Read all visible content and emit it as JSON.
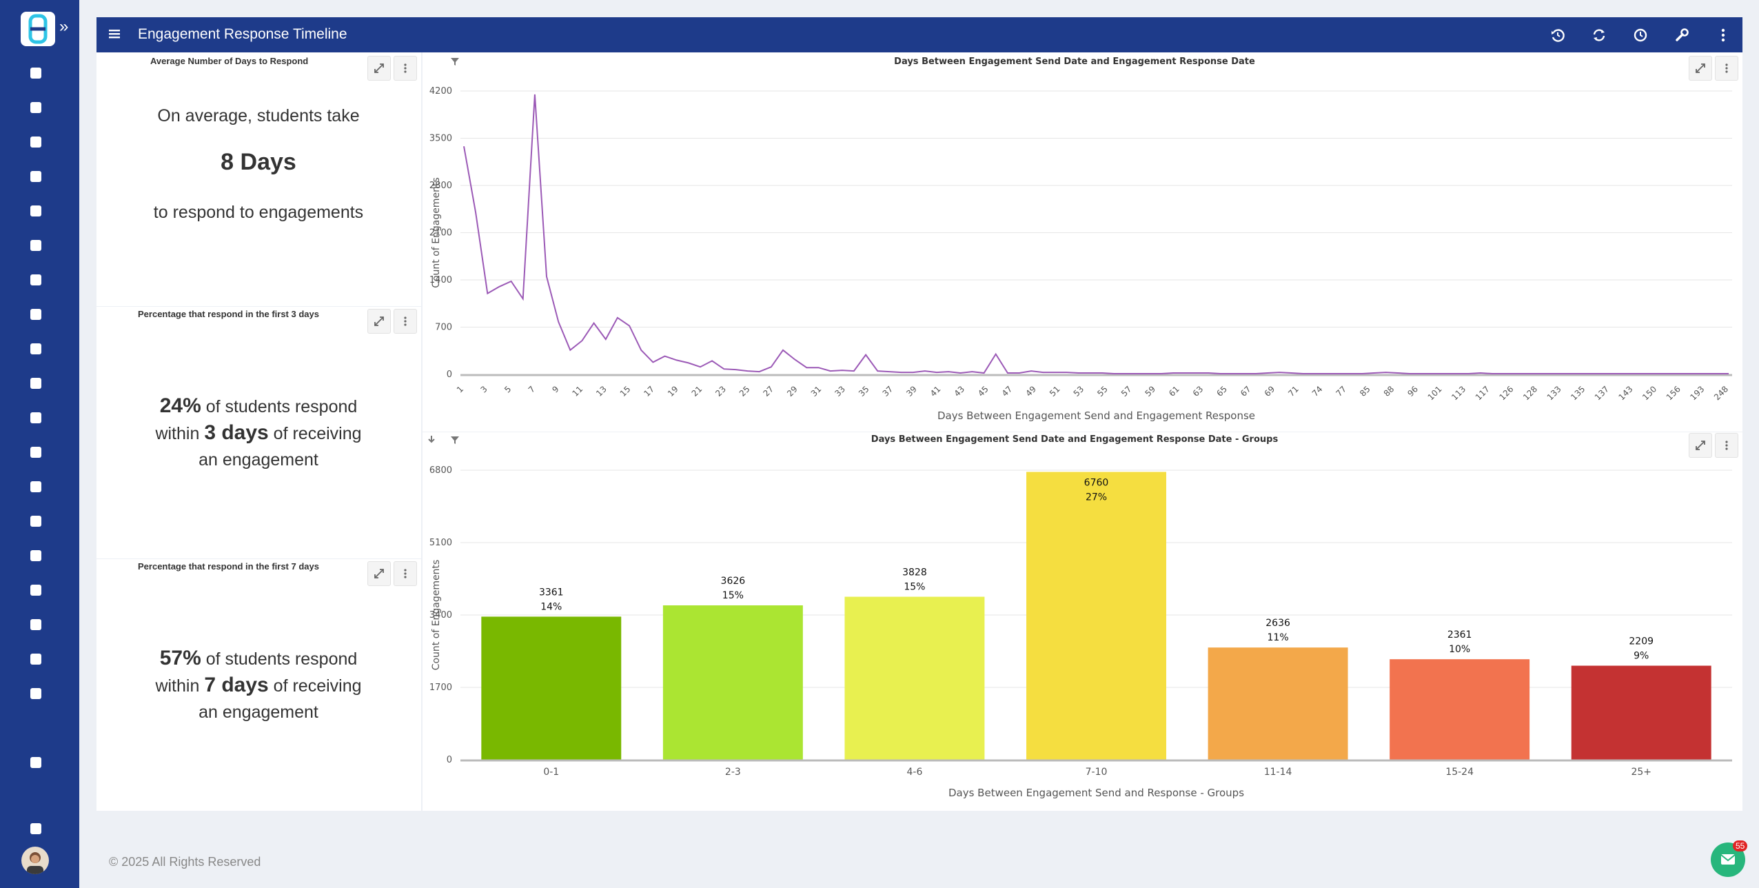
{
  "app": {
    "title": "Engagement Response Timeline"
  },
  "sidebar": {
    "expand_glyph": "»",
    "icons": [
      "home-icon",
      "user-circle-icon",
      "graduation-cap-icon",
      "id-card-icon",
      "bar-chart-icon",
      "document-icon",
      "mobile-icon",
      "mail-icon",
      "clipboard-icon",
      "cloud-icon",
      "chat-icon",
      "network-icon",
      "document-icon",
      "book-icon",
      "phone-icon",
      "calendar-icon",
      "document-icon",
      "widgets-icon",
      "widgets-icon",
      "widgets-icon",
      "logout-icon"
    ]
  },
  "toolbar": {
    "icons": [
      "history-icon",
      "refresh-icon",
      "clock-icon",
      "wrench-icon",
      "more-vertical-icon"
    ]
  },
  "panels": {
    "avg": {
      "title": "Average Number of Days to Respond",
      "line1": "On average, students take",
      "value": "8 Days",
      "line2": "to respond to engagements"
    },
    "three": {
      "title": "Percentage that respond in the first 3 days",
      "pct": "24%",
      "t1": " of students respond",
      "t2": "within ",
      "days": "3 days",
      "t3": " of receiving",
      "t4": "an engagement"
    },
    "seven": {
      "title": "Percentage that respond in the first 7 days",
      "pct": "57%",
      "t1": " of students respond",
      "t2": "within ",
      "days": "7 days",
      "t3": " of receiving",
      "t4": "an engagement"
    }
  },
  "chart_data": [
    {
      "type": "line",
      "title": "Days Between Engagement Send Date and Engagement Response Date",
      "xlabel": "Days Between Engagement Send and Engagement Response",
      "ylabel": "Count of Engagements",
      "ylim": [
        0,
        4200
      ],
      "yticks": [
        0,
        700,
        1400,
        2100,
        2800,
        3500,
        4200
      ],
      "grid": true,
      "color": "#9b59b6",
      "x_tick_labels": [
        "1",
        "3",
        "5",
        "7",
        "9",
        "11",
        "13",
        "15",
        "17",
        "19",
        "21",
        "23",
        "25",
        "27",
        "29",
        "31",
        "33",
        "35",
        "37",
        "39",
        "41",
        "43",
        "45",
        "47",
        "49",
        "51",
        "53",
        "55",
        "57",
        "59",
        "61",
        "63",
        "65",
        "67",
        "69",
        "71",
        "74",
        "77",
        "85",
        "88",
        "96",
        "101",
        "113",
        "117",
        "126",
        "128",
        "133",
        "135",
        "137",
        "143",
        "150",
        "156",
        "193",
        "248"
      ],
      "values": [
        3380,
        2400,
        1200,
        1300,
        1380,
        1120,
        4150,
        1450,
        780,
        360,
        500,
        760,
        520,
        840,
        720,
        360,
        180,
        270,
        210,
        170,
        110,
        200,
        80,
        70,
        50,
        40,
        110,
        360,
        220,
        100,
        100,
        50,
        60,
        50,
        290,
        50,
        40,
        30,
        30,
        50,
        30,
        40,
        20,
        40,
        20,
        300,
        20,
        20,
        50,
        30,
        30,
        30,
        20,
        20,
        20,
        10,
        10,
        10,
        10,
        10,
        20,
        20,
        20,
        20,
        10,
        10,
        10,
        10,
        20,
        30,
        20,
        10,
        10,
        10,
        10,
        10,
        10,
        20,
        30,
        20,
        10,
        10,
        10,
        10,
        10,
        10,
        20,
        10,
        10,
        10,
        10,
        10,
        10,
        10,
        10,
        10,
        10,
        10,
        10,
        10,
        10,
        10,
        10,
        10,
        10,
        10,
        10,
        10
      ]
    },
    {
      "type": "bar",
      "title": "Days Between Engagement Send Date and Engagement Response Date - Groups",
      "xlabel": "Days Between Engagement Send and Response - Groups",
      "ylabel": "Count of Engagements",
      "ylim": [
        0,
        6800
      ],
      "yticks": [
        0,
        1700,
        3400,
        5100,
        6800
      ],
      "grid": true,
      "categories": [
        "0-1",
        "2-3",
        "4-6",
        "7-10",
        "11-14",
        "15-24",
        "25+"
      ],
      "values": [
        3361,
        3626,
        3828,
        6760,
        2636,
        2361,
        2209
      ],
      "percent_labels": [
        "14%",
        "15%",
        "15%",
        "27%",
        "11%",
        "10%",
        "9%"
      ],
      "colors": [
        "#79b800",
        "#abe532",
        "#e8f050",
        "#f5de40",
        "#f3a84a",
        "#f2734f",
        "#c43232"
      ]
    }
  ],
  "footer": {
    "copyright": "© 2025 All Rights Reserved"
  },
  "mail": {
    "badge": "55"
  }
}
